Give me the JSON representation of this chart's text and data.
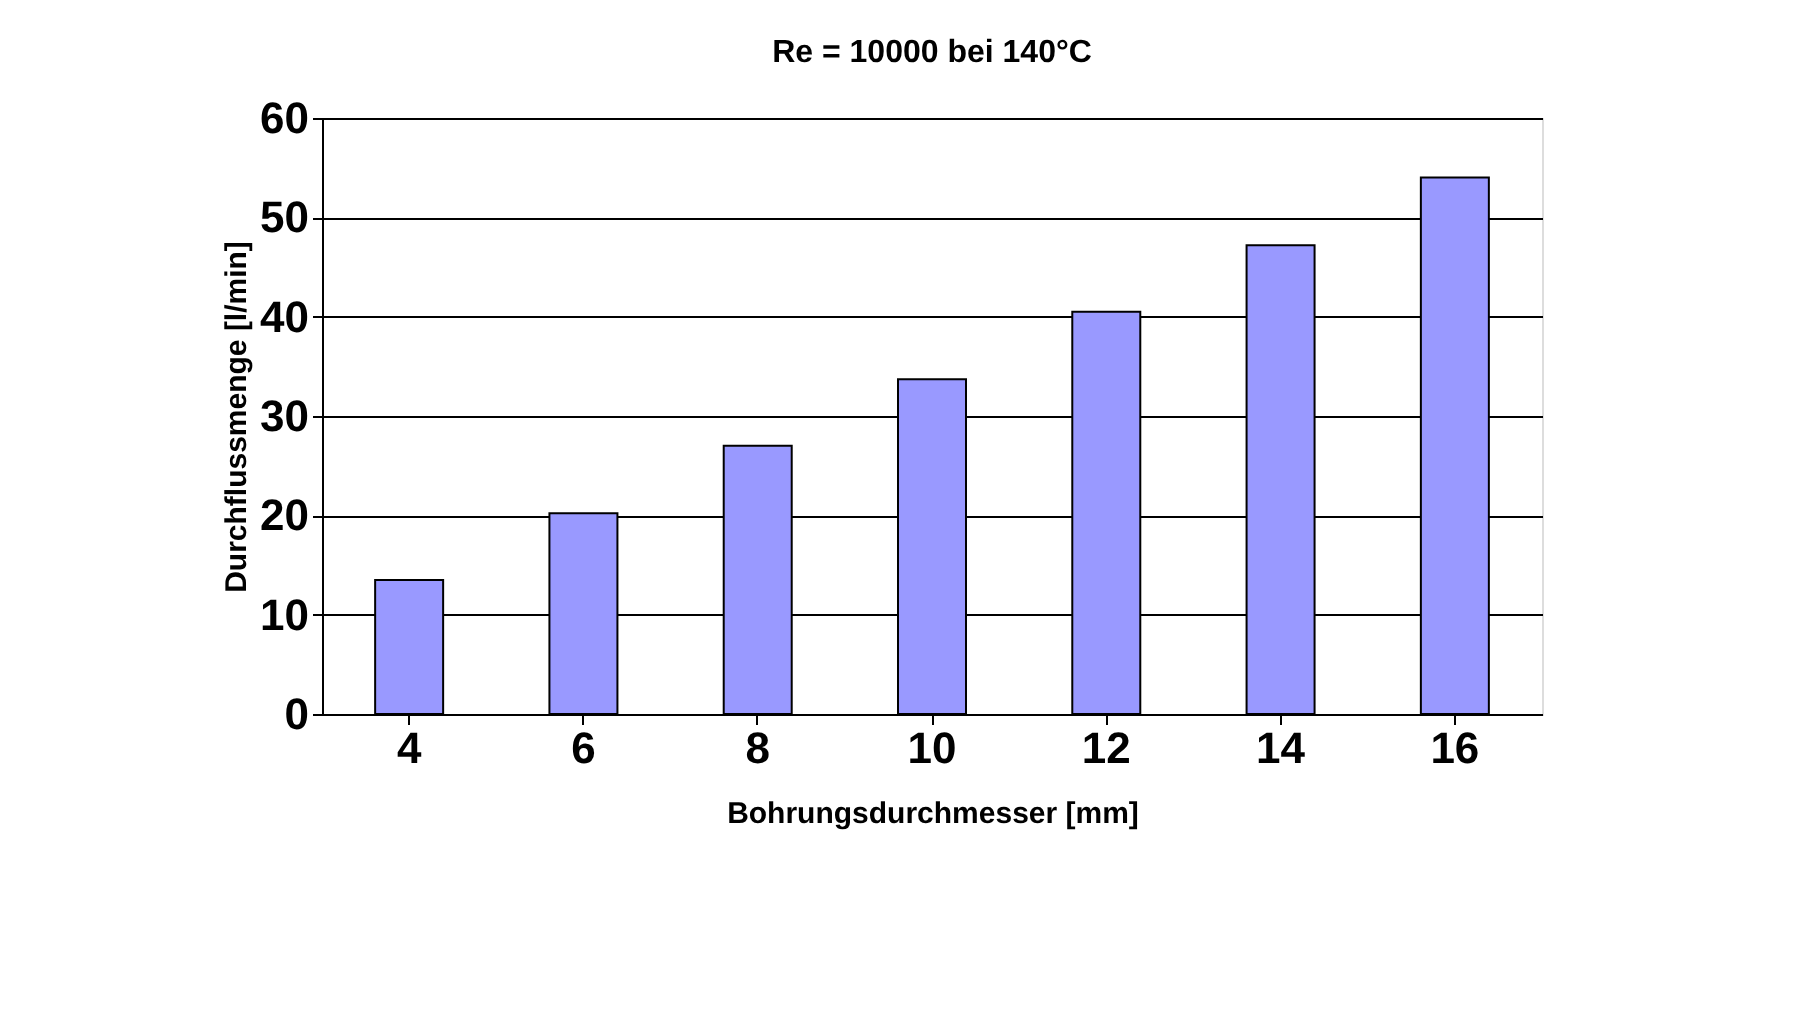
{
  "chart_data": {
    "type": "bar",
    "title": "Re = 10000 bei 140°C",
    "xlabel": "Bohrungsdurchmesser [mm]",
    "ylabel": "Durchflussmenge [l/min]",
    "categories": [
      "4",
      "6",
      "8",
      "10",
      "12",
      "14",
      "16"
    ],
    "values": [
      13.5,
      20.2,
      27,
      33.7,
      40.5,
      47.2,
      54
    ],
    "color": "#9999ff",
    "ylim": [
      0,
      60
    ],
    "yticks": [
      0,
      10,
      20,
      30,
      40,
      50,
      60
    ],
    "grid": "y"
  }
}
